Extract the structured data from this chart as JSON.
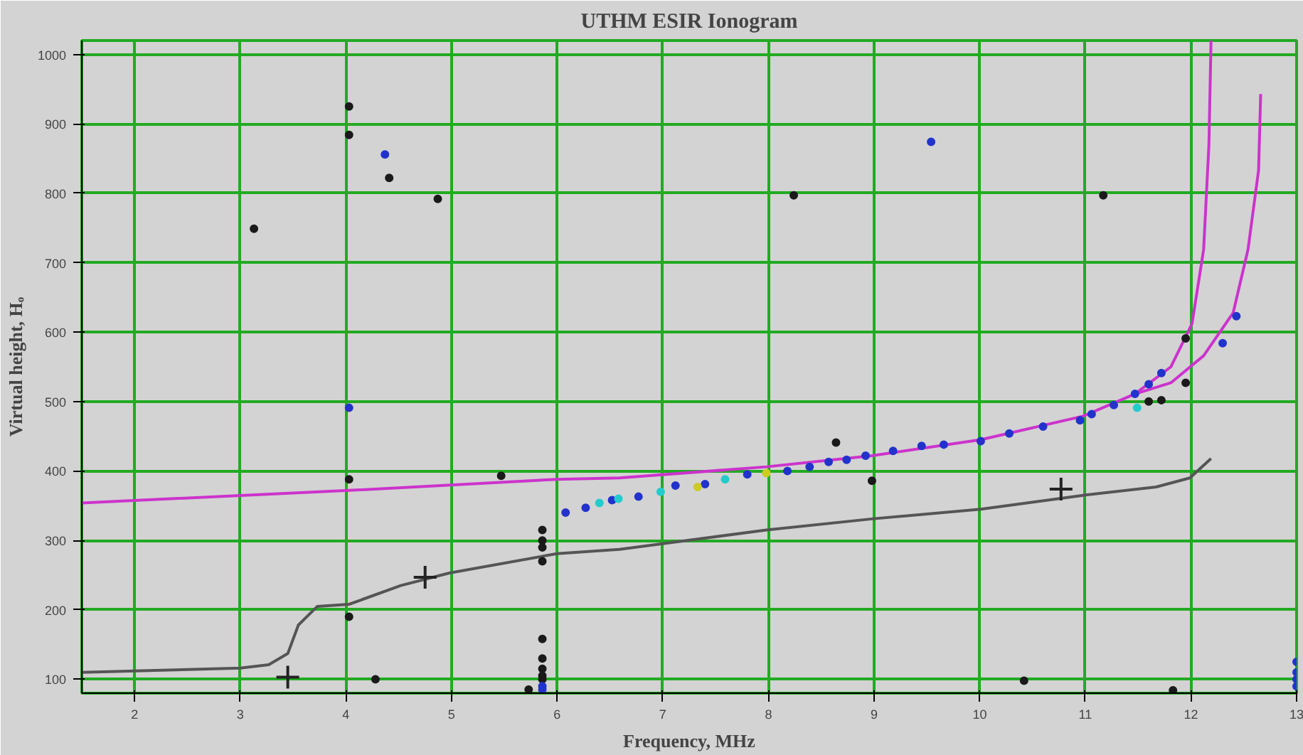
{
  "chart_data": {
    "type": "scatter",
    "title": "UTHM ESIR Ionogram",
    "xlabel": "Frequency, MHz",
    "ylabel": "Virtual height, Hₒ",
    "xlim": [
      1.5,
      13
    ],
    "ylim": [
      80,
      1020
    ],
    "xticks": [
      2,
      3,
      4,
      5,
      6,
      7,
      8,
      9,
      10,
      11,
      12,
      13
    ],
    "yticks": [
      100,
      200,
      300,
      400,
      500,
      600,
      700,
      800,
      900,
      1000
    ],
    "grid": true,
    "marker": "circle",
    "series": [
      {
        "type": "line",
        "color": "#cc33cc",
        "line_style": "solid",
        "marker": "none",
        "x": [
          1.5,
          4.03,
          6.0,
          6.59,
          7.98,
          8.98,
          10.01,
          10.98,
          11.47,
          11.81,
          12.01,
          12.12,
          12.17,
          12.19
        ],
        "values": [
          354,
          372,
          388,
          390,
          406,
          422,
          445,
          479,
          511,
          550,
          612,
          719,
          870,
          1020
        ]
      },
      {
        "type": "line",
        "color": "#cc33cc",
        "line_style": "solid",
        "marker": "none",
        "x": [
          11.47,
          11.81,
          12.12,
          12.4,
          12.54,
          12.64,
          12.66
        ],
        "values": [
          511,
          527,
          566,
          628,
          719,
          833,
          943
        ]
      },
      {
        "type": "line",
        "color": "#555555",
        "line_style": "solid",
        "marker": "none",
        "x": [
          1.5,
          3.0,
          3.27,
          3.45,
          3.55,
          3.73,
          4.03,
          4.52,
          4.98,
          6.0,
          6.59,
          7.98,
          8.98,
          10.01,
          10.98,
          11.67,
          11.99,
          12.19
        ],
        "values": [
          110,
          116,
          121,
          137,
          178,
          205,
          208,
          235,
          253,
          281,
          287,
          315,
          331,
          345,
          365,
          377,
          390,
          418
        ]
      },
      {
        "color": "#222222",
        "marker": "cross",
        "x": [
          3.45,
          4.75,
          10.77
        ],
        "values": [
          103,
          247,
          374
        ]
      },
      {
        "color": "#1a1a1a",
        "x": [
          4.03,
          4.03,
          4.41,
          4.87,
          3.13,
          4.03,
          5.47,
          4.03,
          4.28,
          5.86,
          5.86,
          5.86,
          5.86,
          5.86,
          5.86,
          5.86,
          5.86,
          5.86,
          5.73,
          8.64,
          8.98,
          8.24,
          11.17,
          10.42,
          11.83,
          11.95,
          11.95,
          11.72,
          11.6
        ],
        "values": [
          925,
          884,
          822,
          792,
          749,
          388,
          393,
          190,
          100,
          315,
          300,
          290,
          270,
          158,
          130,
          115,
          105,
          100,
          85,
          441,
          386,
          797,
          797,
          98,
          84,
          591,
          527,
          502,
          500
        ]
      },
      {
        "color": "#2233cc",
        "x": [
          4.37,
          4.03,
          5.86,
          5.86,
          6.08,
          6.27,
          6.52,
          6.77,
          7.12,
          7.4,
          7.8,
          8.18,
          8.39,
          8.57,
          8.74,
          8.92,
          9.18,
          9.45,
          9.66,
          10.01,
          10.28,
          10.6,
          10.95,
          11.06,
          11.27,
          11.47,
          11.6,
          11.72,
          12.3,
          12.43,
          9.54,
          13.0,
          13.0,
          13.0,
          13.0
        ],
        "values": [
          856,
          491,
          90,
          85,
          340,
          347,
          358,
          363,
          379,
          381,
          395,
          400,
          406,
          413,
          416,
          422,
          429,
          436,
          438,
          443,
          454,
          464,
          473,
          482,
          495,
          511,
          525,
          541,
          584,
          623,
          874,
          125,
          110,
          100,
          90
        ]
      },
      {
        "color": "#22cccc",
        "x": [
          6.4,
          6.58,
          6.98,
          7.59,
          11.49
        ],
        "values": [
          354,
          360,
          370,
          388,
          491
        ]
      },
      {
        "color": "#cccc22",
        "x": [
          7.33,
          7.98
        ],
        "values": [
          377,
          397
        ]
      }
    ]
  }
}
